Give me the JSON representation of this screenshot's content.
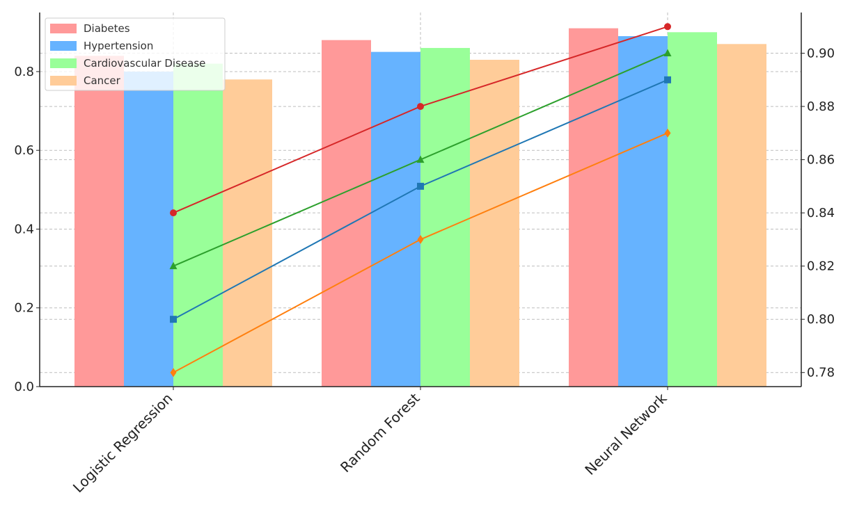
{
  "chart_data": {
    "type": "bar",
    "title": "",
    "xlabel": "",
    "ylabel": "",
    "categories": [
      "Logistic Regression",
      "Random Forest",
      "Neural Network"
    ],
    "ylim": [
      0,
      0.95
    ],
    "yticks": [
      "0.0",
      "0.2",
      "0.4",
      "0.6",
      "0.8"
    ],
    "ytick_values": [
      0.0,
      0.2,
      0.4,
      0.6,
      0.8
    ],
    "series": [
      {
        "name": "Diabetes",
        "values": [
          0.84,
          0.88,
          0.91
        ],
        "color": "#ff9999"
      },
      {
        "name": "Hypertension",
        "values": [
          0.8,
          0.85,
          0.89
        ],
        "color": "#66b3ff"
      },
      {
        "name": "Cardiovascular Disease",
        "values": [
          0.82,
          0.86,
          0.9
        ],
        "color": "#99ff99"
      },
      {
        "name": "Cancer",
        "values": [
          0.78,
          0.83,
          0.87
        ],
        "color": "#ffcc99"
      }
    ],
    "secondary_axis": {
      "type": "line",
      "ylim": [
        0.7747,
        0.9153
      ],
      "yticks": [
        "0.78",
        "0.80",
        "0.82",
        "0.84",
        "0.86",
        "0.88",
        "0.90"
      ],
      "ytick_values": [
        0.78,
        0.8,
        0.82,
        0.84,
        0.86,
        0.88,
        0.9
      ],
      "series": [
        {
          "name": "Diabetes",
          "values": [
            0.84,
            0.88,
            0.91
          ],
          "color": "#d62728",
          "marker": "circle"
        },
        {
          "name": "Hypertension",
          "values": [
            0.8,
            0.85,
            0.89
          ],
          "color": "#1f77b4",
          "marker": "square"
        },
        {
          "name": "Cardiovascular Disease",
          "values": [
            0.82,
            0.86,
            0.9
          ],
          "color": "#2ca02c",
          "marker": "triangle"
        },
        {
          "name": "Cancer",
          "values": [
            0.78,
            0.83,
            0.87
          ],
          "color": "#ff7f0e",
          "marker": "diamond"
        }
      ]
    },
    "grid": true,
    "legend": {
      "placement": "top-left",
      "entries": [
        "Diabetes",
        "Hypertension",
        "Cardiovascular Disease",
        "Cancer"
      ]
    }
  }
}
